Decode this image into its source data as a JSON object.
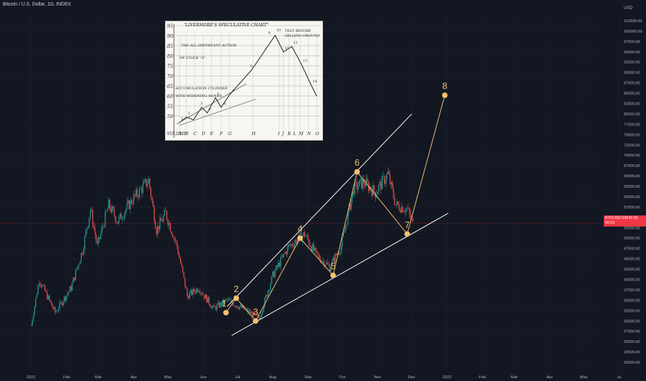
{
  "header": {
    "symbol_title": "Bitcoin / U.S. Dollar, 1D, INDEX",
    "axis_currency": "USD"
  },
  "price_tag": {
    "symbol": "BTCUSD",
    "price": "53542.69",
    "countdown": "50:01",
    "color": "#f23645"
  },
  "colors": {
    "background": "#131722",
    "up": "#26a69a",
    "down": "#ef5350",
    "channel": "#ffffff",
    "wave": "#f2c26b"
  },
  "inset": {
    "title": "\"LIVERMORE'S SPECULATIVE CHART\"",
    "y_labels": [
      "95",
      "90",
      "85",
      "80",
      "75",
      "70",
      "65",
      "60",
      "55",
      "50"
    ],
    "x_labels": [
      "VOLUME",
      "A",
      "B",
      "C",
      "D",
      "E",
      "F",
      "G",
      "H",
      "I",
      "J",
      "K",
      "L",
      "M",
      "N",
      "O"
    ],
    "notes": {
      "important_action": "THE ALL-IMPORTANT ACTION",
      "of_stock": "OF STOCK \"A\".",
      "accumulation": "ACCUMULATION CYLINDER",
      "with_widening": "WITH WIDENING MOVES",
      "test_before": "TEST BEFORE",
      "selling_ground": "SELLING GROUND"
    },
    "point_labels": [
      "1",
      "2",
      "3",
      "4",
      "5",
      "6",
      "7",
      "8",
      "9",
      "10",
      "11",
      "12",
      "13",
      "14"
    ]
  },
  "chart_data": {
    "type": "candlestick",
    "title": "Bitcoin / U.S. Dollar, 1D, INDEX",
    "y_axis": {
      "unit": "USD",
      "range": [
        18500,
        104500
      ],
      "ticks": [
        20000,
        22500,
        25000,
        27500,
        30000,
        32500,
        35000,
        37500,
        40000,
        42500,
        45000,
        47500,
        50000,
        52500,
        55000,
        57500,
        60000,
        62500,
        65000,
        67500,
        70000,
        72500,
        75000,
        77500,
        80000,
        82500,
        85000,
        87500,
        90000,
        92500,
        95000,
        97500,
        100000,
        102500
      ],
      "tick_labels": [
        "20000.00",
        "22500.00",
        "25000.00",
        "27500.00",
        "30000.00",
        "32500.00",
        "35000.00",
        "37500.00",
        "40000.00",
        "42500.00",
        "45000.00",
        "47500.00",
        "50000.00",
        "52500.00",
        "55000.00",
        "57500.00",
        "60000.00",
        "62500.00",
        "65000.00",
        "67500.00",
        "70000.00",
        "72500.00",
        "75000.00",
        "77500.00",
        "80000.00",
        "82500.00",
        "85000.00",
        "87500.00",
        "90000.00",
        "92500.00",
        "95000.00",
        "97500.00",
        "100000.00",
        "102500.00"
      ]
    },
    "x_axis": {
      "labels": [
        "2021",
        "Feb",
        "Mar",
        "Apr",
        "May",
        "Jun",
        "Jul",
        "Aug",
        "Sep",
        "Oct",
        "Nov",
        "Dec",
        "2022",
        "Feb",
        "Mar",
        "Apr",
        "May",
        "Ju"
      ],
      "label_day_index": [
        0,
        31,
        59,
        90,
        120,
        151,
        181,
        212,
        243,
        273,
        304,
        334,
        365,
        396,
        424,
        455,
        485,
        516
      ]
    },
    "price_anchors": [
      {
        "day": 0,
        "price": 29000
      },
      {
        "day": 7,
        "price": 40000
      },
      {
        "day": 14,
        "price": 36000
      },
      {
        "day": 21,
        "price": 32000
      },
      {
        "day": 35,
        "price": 38000
      },
      {
        "day": 45,
        "price": 47000
      },
      {
        "day": 52,
        "price": 57000
      },
      {
        "day": 58,
        "price": 48000
      },
      {
        "day": 68,
        "price": 58000
      },
      {
        "day": 76,
        "price": 54000
      },
      {
        "day": 88,
        "price": 59000
      },
      {
        "day": 103,
        "price": 64000
      },
      {
        "day": 110,
        "price": 52000
      },
      {
        "day": 118,
        "price": 56000
      },
      {
        "day": 128,
        "price": 48000
      },
      {
        "day": 137,
        "price": 36000
      },
      {
        "day": 147,
        "price": 38000
      },
      {
        "day": 160,
        "price": 33000
      },
      {
        "day": 172,
        "price": 35000
      },
      {
        "day": 186,
        "price": 33000
      },
      {
        "day": 200,
        "price": 30500
      },
      {
        "day": 212,
        "price": 41000
      },
      {
        "day": 226,
        "price": 48000
      },
      {
        "day": 240,
        "price": 51000
      },
      {
        "day": 250,
        "price": 46000
      },
      {
        "day": 262,
        "price": 43000
      },
      {
        "day": 272,
        "price": 48000
      },
      {
        "day": 283,
        "price": 62000
      },
      {
        "day": 292,
        "price": 63500
      },
      {
        "day": 302,
        "price": 61000
      },
      {
        "day": 313,
        "price": 65500
      },
      {
        "day": 320,
        "price": 58000
      },
      {
        "day": 330,
        "price": 57000
      },
      {
        "day": 335,
        "price": 53500
      }
    ],
    "last_price": 53542.69,
    "wave_points": [
      {
        "label": "1",
        "day": 171,
        "price": 32000
      },
      {
        "label": "2",
        "day": 180,
        "price": 35500
      },
      {
        "label": "3",
        "day": 197,
        "price": 30000
      },
      {
        "label": "4",
        "day": 236,
        "price": 50000
      },
      {
        "label": "5",
        "day": 265,
        "price": 41000
      },
      {
        "label": "6",
        "day": 286,
        "price": 66000
      },
      {
        "label": "7",
        "day": 330,
        "price": 51000
      },
      {
        "label": "8",
        "day": 363,
        "price": 84500
      }
    ],
    "channel_lines": [
      {
        "from": {
          "day": 172,
          "price": 33500
        },
        "to": {
          "day": 334,
          "price": 80000
        }
      },
      {
        "from": {
          "day": 176,
          "price": 26500
        },
        "to": {
          "day": 366,
          "price": 56000
        }
      }
    ]
  }
}
